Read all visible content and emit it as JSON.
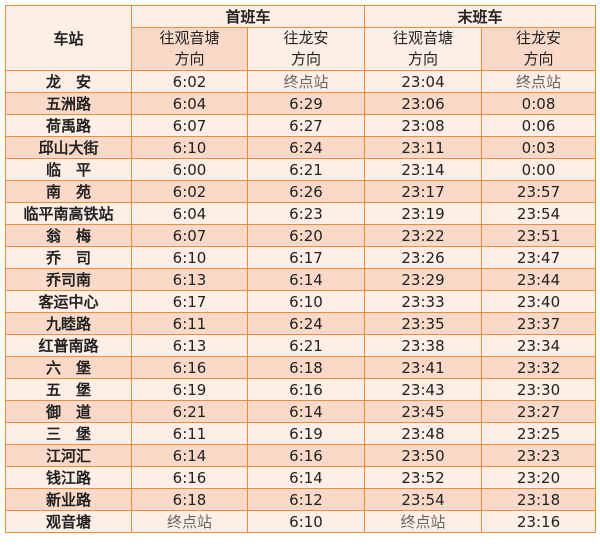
{
  "header": {
    "station": "车站",
    "first_train": "首班车",
    "last_train": "末班车",
    "dir_guanyintang": [
      "往观音塘",
      "方向"
    ],
    "dir_longan": [
      "往龙安",
      "方向"
    ]
  },
  "terminal_label": "终点站",
  "colors": {
    "border": "#f08a3c",
    "row_light": "#fdeee6",
    "row_dark": "#fad9c8"
  },
  "rows": [
    {
      "station": "龙　安",
      "first_gyt": "6:02",
      "first_la": "终点站",
      "last_gyt": "23:04",
      "last_la": "终点站"
    },
    {
      "station": "五洲路",
      "first_gyt": "6:04",
      "first_la": "6:29",
      "last_gyt": "23:06",
      "last_la": "0:08"
    },
    {
      "station": "荷禹路",
      "first_gyt": "6:07",
      "first_la": "6:27",
      "last_gyt": "23:08",
      "last_la": "0:06"
    },
    {
      "station": "邱山大街",
      "first_gyt": "6:10",
      "first_la": "6:24",
      "last_gyt": "23:11",
      "last_la": "0:03"
    },
    {
      "station": "临　平",
      "first_gyt": "6:00",
      "first_la": "6:21",
      "last_gyt": "23:14",
      "last_la": "0:00"
    },
    {
      "station": "南　苑",
      "first_gyt": "6:02",
      "first_la": "6:26",
      "last_gyt": "23:17",
      "last_la": "23:57"
    },
    {
      "station": "临平南高铁站",
      "first_gyt": "6:04",
      "first_la": "6:23",
      "last_gyt": "23:19",
      "last_la": "23:54"
    },
    {
      "station": "翁　梅",
      "first_gyt": "6:07",
      "first_la": "6:20",
      "last_gyt": "23:22",
      "last_la": "23:51"
    },
    {
      "station": "乔　司",
      "first_gyt": "6:10",
      "first_la": "6:17",
      "last_gyt": "23:26",
      "last_la": "23:47"
    },
    {
      "station": "乔司南",
      "first_gyt": "6:13",
      "first_la": "6:14",
      "last_gyt": "23:29",
      "last_la": "23:44"
    },
    {
      "station": "客运中心",
      "first_gyt": "6:17",
      "first_la": "6:10",
      "last_gyt": "23:33",
      "last_la": "23:40"
    },
    {
      "station": "九睦路",
      "first_gyt": "6:11",
      "first_la": "6:24",
      "last_gyt": "23:35",
      "last_la": "23:37"
    },
    {
      "station": "红普南路",
      "first_gyt": "6:13",
      "first_la": "6:21",
      "last_gyt": "23:38",
      "last_la": "23:34"
    },
    {
      "station": "六　堡",
      "first_gyt": "6:16",
      "first_la": "6:18",
      "last_gyt": "23:41",
      "last_la": "23:32"
    },
    {
      "station": "五　堡",
      "first_gyt": "6:19",
      "first_la": "6:16",
      "last_gyt": "23:43",
      "last_la": "23:30"
    },
    {
      "station": "御　道",
      "first_gyt": "6:21",
      "first_la": "6:14",
      "last_gyt": "23:45",
      "last_la": "23:27"
    },
    {
      "station": "三　堡",
      "first_gyt": "6:11",
      "first_la": "6:19",
      "last_gyt": "23:48",
      "last_la": "23:25"
    },
    {
      "station": "江河汇",
      "first_gyt": "6:14",
      "first_la": "6:16",
      "last_gyt": "23:50",
      "last_la": "23:23"
    },
    {
      "station": "钱江路",
      "first_gyt": "6:16",
      "first_la": "6:14",
      "last_gyt": "23:52",
      "last_la": "23:20"
    },
    {
      "station": "新业路",
      "first_gyt": "6:18",
      "first_la": "6:12",
      "last_gyt": "23:54",
      "last_la": "23:18"
    },
    {
      "station": "观音塘",
      "first_gyt": "终点站",
      "first_la": "6:10",
      "last_gyt": "终点站",
      "last_la": "23:16"
    }
  ]
}
